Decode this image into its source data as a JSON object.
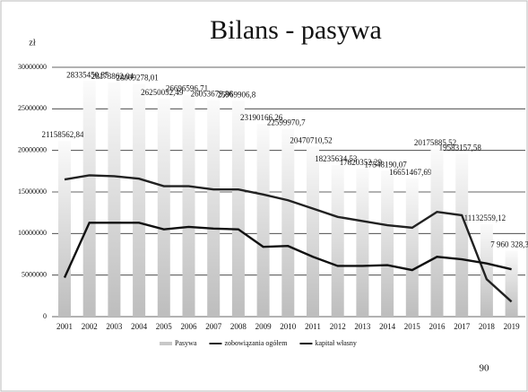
{
  "chart_data": {
    "type": "bar_line",
    "title": "Bilans - pasywa",
    "y_label": "zł",
    "page_number": "90",
    "categories": [
      "2001",
      "2002",
      "2003",
      "2004",
      "2005",
      "2006",
      "2007",
      "2008",
      "2009",
      "2010",
      "2011",
      "2012",
      "2013",
      "2014",
      "2015",
      "2016",
      "2017",
      "2018",
      "2019"
    ],
    "ylim": [
      0,
      30000000
    ],
    "yticks": [
      0,
      5000000,
      10000000,
      15000000,
      20000000,
      25000000,
      30000000
    ],
    "grid": true,
    "legend": "bottom",
    "series": [
      {
        "name": "Pasywa",
        "type": "bar",
        "color": "#c8c8c8",
        "values": [
          21158562.84,
          28335450.85,
          28173862.04,
          28009278.01,
          26250052.49,
          26696596.71,
          26053679.86,
          25969906.8,
          23190166.26,
          22599970.7,
          20470710.52,
          18235634.53,
          17820352.29,
          17548190.07,
          16651467.69,
          20175885.52,
          19583157.58,
          11132559.12,
          7960328.3
        ],
        "value_labels": [
          "21158562,84",
          "28335450,85",
          "28173862,04",
          "28009278,01",
          "26250052,49",
          "26696596,71",
          "26053679,86",
          "25969906,8",
          "23190166,26",
          "22599970,7",
          "20470710,52",
          "18235634,53",
          "17820352,29",
          "17548190,07",
          "16651467,69",
          "20175885,52",
          "19583157,58",
          "11132559,12",
          "7 960 328,3"
        ]
      },
      {
        "name": "zobowiązania ogółem",
        "type": "line",
        "color": "#222222",
        "values": [
          16500000,
          17000000,
          16900000,
          16600000,
          15700000,
          15700000,
          15300000,
          15300000,
          14700000,
          14000000,
          13000000,
          12000000,
          11500000,
          11000000,
          10700000,
          12600000,
          12200000,
          4500000,
          1800000
        ]
      },
      {
        "name": "kapitał własny",
        "type": "line",
        "color": "#111111",
        "values": [
          4700000,
          11300000,
          11300000,
          11300000,
          10500000,
          10800000,
          10600000,
          10500000,
          8400000,
          8500000,
          7200000,
          6100000,
          6100000,
          6200000,
          5600000,
          7200000,
          6900000,
          6400000,
          5700000
        ]
      }
    ]
  }
}
